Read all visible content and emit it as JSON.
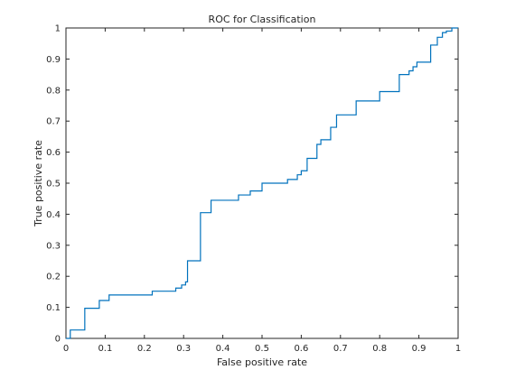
{
  "chart_data": {
    "type": "line",
    "title": "ROC for Classification",
    "xlabel": "False positive rate",
    "ylabel": "True positive rate",
    "xlim": [
      0,
      1
    ],
    "ylim": [
      0,
      1
    ],
    "xticks": [
      0,
      0.1,
      0.2,
      0.3,
      0.4,
      0.5,
      0.6,
      0.7,
      0.8,
      0.9,
      1
    ],
    "yticks": [
      0,
      0.1,
      0.2,
      0.3,
      0.4,
      0.5,
      0.6,
      0.7,
      0.8,
      0.9,
      1
    ],
    "xtick_labels": [
      "0",
      "0.1",
      "0.2",
      "0.3",
      "0.4",
      "0.5",
      "0.6",
      "0.7",
      "0.8",
      "0.9",
      "1"
    ],
    "ytick_labels": [
      "0",
      "0.1",
      "0.2",
      "0.3",
      "0.4",
      "0.5",
      "0.6",
      "0.7",
      "0.8",
      "0.9",
      "1"
    ],
    "grid": false,
    "line_color": "#0072BD",
    "series": [
      {
        "style": "staircase",
        "x": [
          0,
          0.011,
          0.011,
          0.048,
          0.048,
          0.085,
          0.085,
          0.11,
          0.11,
          0.22,
          0.22,
          0.28,
          0.28,
          0.295,
          0.295,
          0.305,
          0.305,
          0.31,
          0.31,
          0.343,
          0.343,
          0.37,
          0.37,
          0.44,
          0.44,
          0.47,
          0.47,
          0.5,
          0.5,
          0.565,
          0.565,
          0.59,
          0.59,
          0.6,
          0.6,
          0.615,
          0.615,
          0.64,
          0.64,
          0.65,
          0.65,
          0.675,
          0.675,
          0.69,
          0.69,
          0.74,
          0.74,
          0.8,
          0.8,
          0.85,
          0.85,
          0.875,
          0.875,
          0.885,
          0.885,
          0.895,
          0.895,
          0.93,
          0.93,
          0.947,
          0.947,
          0.96,
          0.96,
          0.97,
          0.97,
          0.984,
          0.984,
          1
        ],
        "y": [
          0,
          0,
          0.027,
          0.027,
          0.097,
          0.097,
          0.122,
          0.122,
          0.14,
          0.14,
          0.152,
          0.152,
          0.162,
          0.162,
          0.172,
          0.172,
          0.182,
          0.182,
          0.25,
          0.25,
          0.405,
          0.405,
          0.445,
          0.445,
          0.462,
          0.462,
          0.475,
          0.475,
          0.5,
          0.5,
          0.512,
          0.512,
          0.527,
          0.527,
          0.54,
          0.54,
          0.58,
          0.58,
          0.625,
          0.625,
          0.64,
          0.64,
          0.68,
          0.68,
          0.72,
          0.72,
          0.765,
          0.765,
          0.795,
          0.795,
          0.85,
          0.85,
          0.862,
          0.862,
          0.875,
          0.875,
          0.89,
          0.89,
          0.945,
          0.945,
          0.97,
          0.97,
          0.985,
          0.985,
          0.99,
          0.99,
          1,
          1
        ]
      }
    ]
  }
}
